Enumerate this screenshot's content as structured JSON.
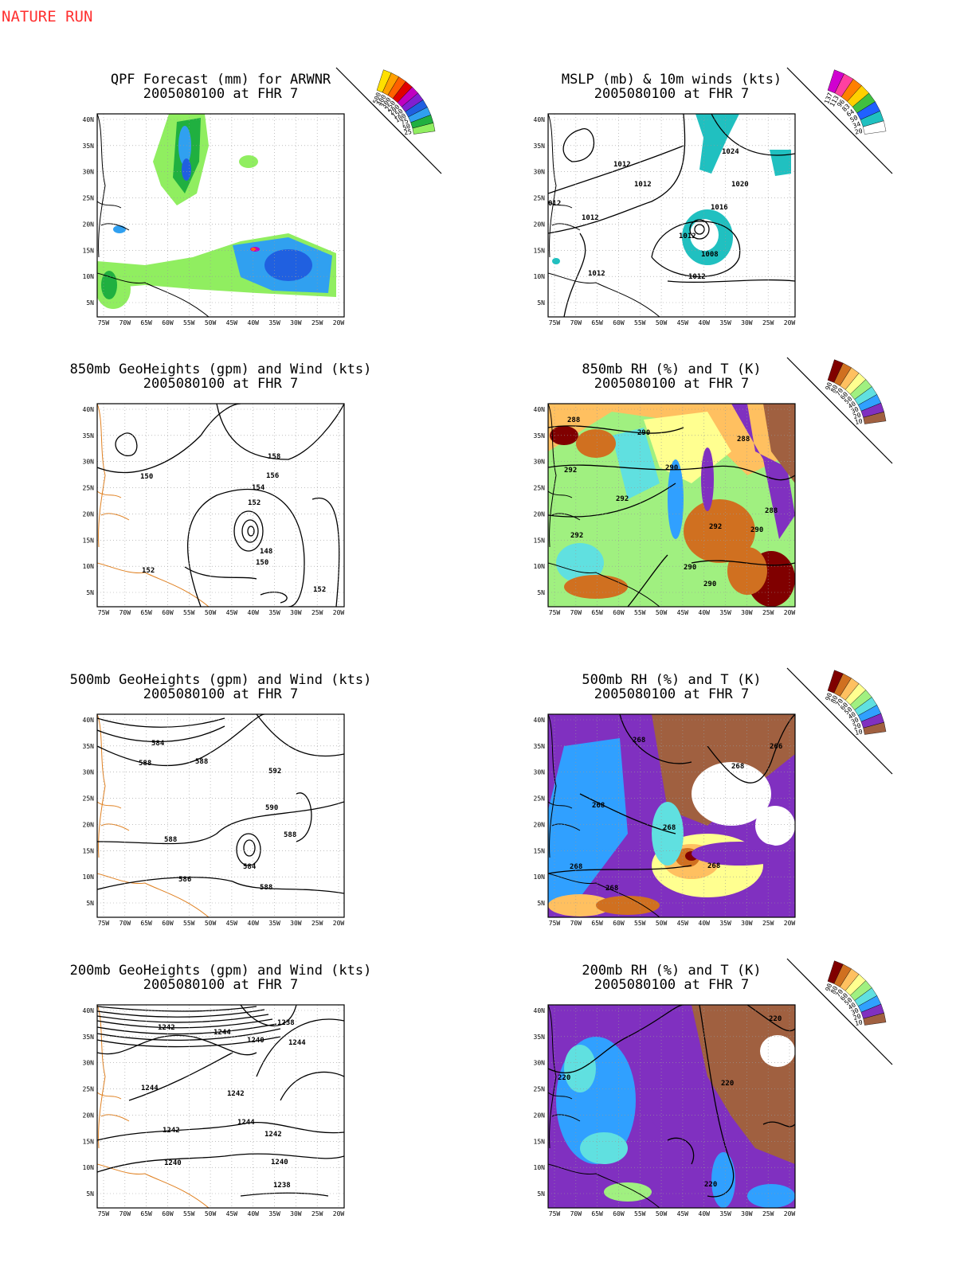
{
  "header": {
    "title": "NATURE RUN"
  },
  "axes": {
    "lat_labels": [
      "40N",
      "35N",
      "30N",
      "25N",
      "20N",
      "15N",
      "10N",
      "5N"
    ],
    "lon_labels": [
      "75W",
      "70W",
      "65W",
      "60W",
      "55W",
      "50W",
      "45W",
      "40W",
      "35W",
      "30W",
      "25W",
      "20W"
    ]
  },
  "panels": [
    {
      "title": "QPF Forecast (mm) for ARWNR",
      "subtitle": "2005080100 at FHR 7",
      "legend": [
        500,
        400,
        300,
        250,
        200,
        150,
        100,
        75,
        50,
        25
      ],
      "contour_labels": []
    },
    {
      "title": "MSLP (mb) & 10m winds (kts)",
      "subtitle": "2005080100 at FHR 7",
      "legend": [
        137,
        113,
        96,
        83,
        64,
        50,
        34,
        20
      ],
      "contour_labels": [
        1012,
        1012,
        1024,
        1020,
        "012",
        1012,
        1016,
        1012,
        1008,
        1012,
        1012
      ]
    },
    {
      "title": "850mb GeoHeights (gpm) and Wind (kts)",
      "subtitle": "2005080100 at FHR 7",
      "legend": [],
      "contour_labels": [
        158,
        156,
        150,
        154,
        152,
        148,
        150,
        152,
        152
      ]
    },
    {
      "title": "850mb RH (%) and T (K)",
      "subtitle": "2005080100 at FHR 7",
      "legend": [
        90,
        80,
        70,
        60,
        50,
        40,
        30,
        20,
        10
      ],
      "contour_labels": [
        288,
        290,
        288,
        292,
        290,
        292,
        288,
        292,
        292,
        290,
        290,
        290
      ]
    },
    {
      "title": "500mb GeoHeights (gpm) and Wind (kts)",
      "subtitle": "2005080100 at FHR 7",
      "legend": [],
      "contour_labels": [
        584,
        588,
        588,
        592,
        590,
        588,
        588,
        584,
        586,
        588
      ]
    },
    {
      "title": "500mb RH (%) and T (K)",
      "subtitle": "2005080100 at FHR 7",
      "legend": [
        90,
        80,
        70,
        60,
        50,
        40,
        30,
        20,
        10
      ],
      "contour_labels": [
        268,
        266,
        268,
        268,
        268,
        268,
        268,
        268
      ]
    },
    {
      "title": "200mb GeoHeights (gpm) and Wind (kts)",
      "subtitle": "2005080100 at FHR 7",
      "legend": [],
      "contour_labels": [
        1242,
        1244,
        1238,
        1240,
        1244,
        1244,
        1242,
        1244,
        1242,
        1242,
        1240,
        1240,
        1238
      ]
    },
    {
      "title": "200mb RH (%) and T (K)",
      "subtitle": "2005080100 at FHR 7",
      "legend": [
        90,
        80,
        70,
        60,
        50,
        40,
        30,
        20,
        10
      ],
      "contour_labels": [
        220,
        220,
        220,
        220
      ]
    }
  ]
}
